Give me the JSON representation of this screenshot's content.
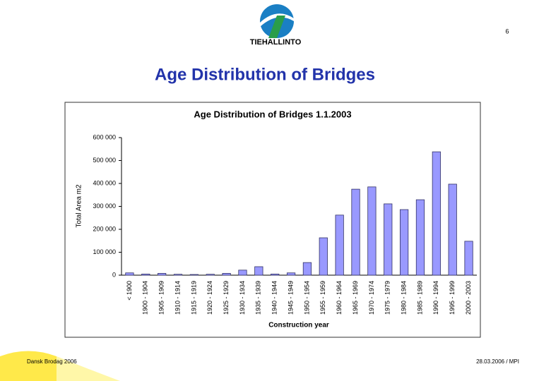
{
  "page_number": "6",
  "logo_text": "TIEHALLINTO",
  "slide_title": "Age Distribution of Bridges",
  "footer_left": "Dansk Brodag 2006",
  "footer_right": "28.03.2006 / MPI",
  "chart_data": {
    "type": "bar",
    "title": "Age Distribution of Bridges 1.1.2003",
    "x_label": "Construction year",
    "y_label": "Total Area m2",
    "categories": [
      "< 1900",
      "1900 - 1904",
      "1905 - 1909",
      "1910 - 1914",
      "1915 - 1919",
      "1920 - 1924",
      "1925 - 1929",
      "1930 - 1934",
      "1935 - 1939",
      "1940 - 1944",
      "1945 - 1949",
      "1950 - 1954",
      "1955 - 1959",
      "1960 - 1964",
      "1965 - 1969",
      "1970 - 1974",
      "1975 - 1979",
      "1980 - 1984",
      "1985 - 1989",
      "1990 - 1994",
      "1995 - 1999",
      "2000 - 2003"
    ],
    "values": [
      10000,
      5000,
      8000,
      4000,
      3000,
      4000,
      8000,
      22000,
      37000,
      5000,
      10000,
      55000,
      163000,
      262000,
      375000,
      385000,
      311000,
      286000,
      329000,
      538000,
      397000,
      148000
    ],
    "color": "#9999ff",
    "ylim": [
      0,
      600000
    ],
    "yticks": [
      0,
      {
        "value": 100000,
        "label": "100 000"
      },
      {
        "value": 200000,
        "label": "200 000"
      },
      {
        "value": 300000,
        "label": "300 000"
      },
      {
        "value": 400000,
        "label": "400 000"
      },
      {
        "value": 500000,
        "label": "500 000"
      },
      {
        "value": 600000,
        "label": "600 000"
      }
    ],
    "grid": false
  }
}
